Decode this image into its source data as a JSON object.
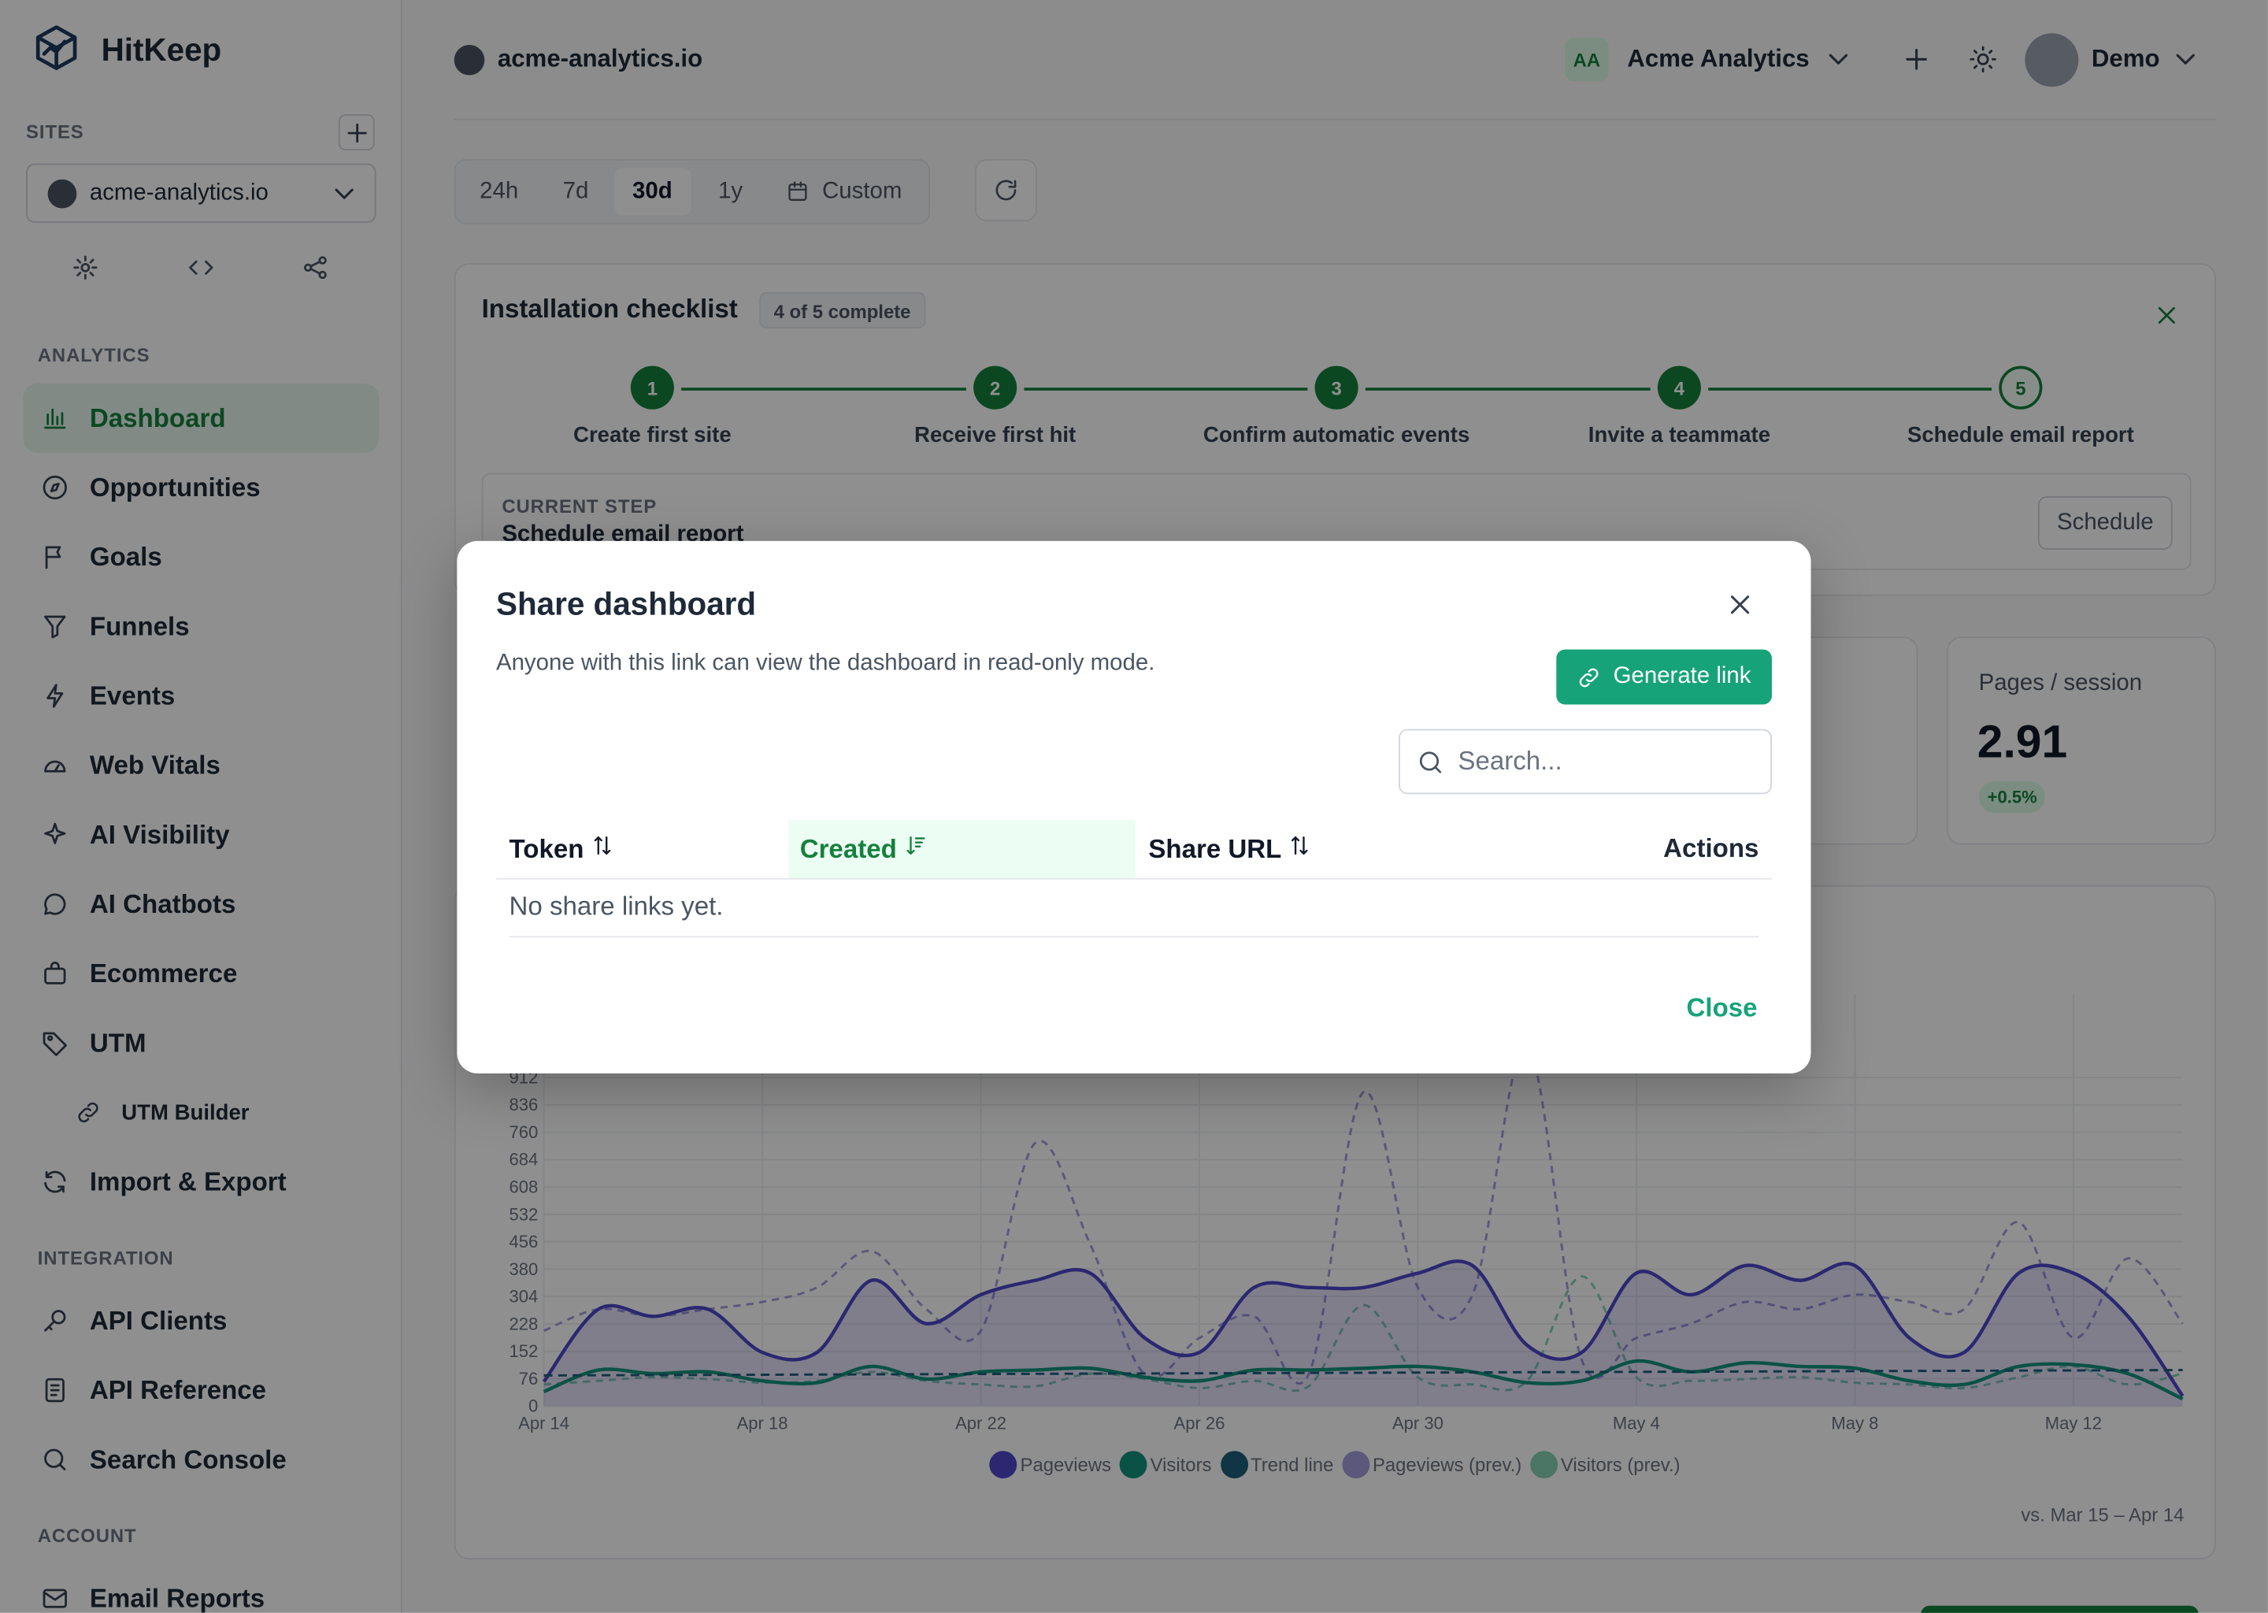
{
  "sidebar": {
    "brand": "HitKeep",
    "sites_label": "SITES",
    "site": "acme-analytics.io",
    "sections": [
      {
        "label": "ANALYTICS",
        "items": [
          "Dashboard",
          "Opportunities",
          "Goals",
          "Funnels",
          "Events",
          "Web Vitals",
          "AI Visibility",
          "AI Chatbots",
          "Ecommerce",
          "UTM",
          "UTM Builder",
          "Import & Export"
        ]
      },
      {
        "label": "INTEGRATION",
        "items": [
          "API Clients",
          "API Reference",
          "Search Console"
        ]
      },
      {
        "label": "ACCOUNT",
        "items": [
          "Email Reports"
        ]
      }
    ]
  },
  "header": {
    "site": "acme-analytics.io",
    "org_initials": "AA",
    "org": "Acme Analytics",
    "user": "Demo"
  },
  "toolbar": {
    "ranges": [
      "24h",
      "7d",
      "30d",
      "1y",
      "Custom"
    ]
  },
  "checklist": {
    "title": "Installation checklist",
    "badge": "4 of 5 complete",
    "steps": [
      {
        "number": 1,
        "label": "Create first site"
      },
      {
        "number": 2,
        "label": "Receive first hit"
      },
      {
        "number": 3,
        "label": "Confirm automatic events"
      },
      {
        "number": 4,
        "label": "Invite a teammate"
      },
      {
        "number": 5,
        "label": "Schedule email report"
      }
    ],
    "current_label": "CURRENT STEP",
    "current_step": "Schedule email report",
    "action": "Schedule"
  },
  "stats": [
    {
      "label": "Pages / session",
      "value": "2.91",
      "change": "+0.5%"
    }
  ],
  "chart_data": {
    "type": "line",
    "categories": [
      "Apr 14",
      null,
      null,
      null,
      "Apr 18",
      null,
      null,
      null,
      "Apr 22",
      null,
      null,
      null,
      "Apr 26",
      null,
      null,
      null,
      "Apr 30",
      null,
      null,
      null,
      "May 4",
      null,
      null,
      null,
      "May 8",
      null,
      null,
      null,
      "May 12",
      null,
      null
    ],
    "series": [
      {
        "name": "Pageviews",
        "color": "#4f46c8",
        "fill": true,
        "dash": false,
        "values": [
          68,
          269,
          249,
          269,
          149,
          149,
          349,
          229,
          309,
          349,
          369,
          189,
          149,
          329,
          329,
          329,
          369,
          390,
          169,
          149,
          369,
          309,
          390,
          349,
          390,
          189,
          149,
          369,
          369,
          249,
          28
        ]
      },
      {
        "name": "Visitors",
        "color": "#12927b",
        "fill": false,
        "dash": false,
        "values": [
          40,
          100,
          90,
          95,
          70,
          65,
          110,
          75,
          95,
          100,
          105,
          80,
          70,
          100,
          100,
          105,
          110,
          95,
          65,
          70,
          125,
          95,
          120,
          110,
          105,
          70,
          60,
          110,
          115,
          90,
          20
        ]
      },
      {
        "name": "Trend line",
        "color": "#1d5f7a",
        "fill": false,
        "dash": true,
        "values": [
          85,
          85.5,
          86,
          86.5,
          87,
          87.5,
          88,
          88.5,
          89,
          89.5,
          90,
          90.5,
          91,
          91.5,
          92,
          92.5,
          93,
          93.5,
          94,
          94.5,
          95,
          95.5,
          96,
          96.5,
          97,
          97.5,
          98,
          98.5,
          99,
          99.5,
          100
        ]
      },
      {
        "name": "Pageviews (prev.)",
        "color": "#a29ddc",
        "fill": false,
        "dash": true,
        "values": [
          209,
          269,
          249,
          269,
          289,
          329,
          430,
          269,
          209,
          731,
          450,
          88,
          189,
          249,
          88,
          871,
          329,
          309,
          1000,
          128,
          189,
          229,
          289,
          269,
          309,
          289,
          269,
          510,
          189,
          410,
          229
        ]
      },
      {
        "name": "Visitors (prev.)",
        "color": "#86d1b4",
        "fill": false,
        "dash": true,
        "values": [
          60,
          70,
          80,
          75,
          65,
          70,
          95,
          70,
          60,
          55,
          90,
          75,
          50,
          70,
          55,
          280,
          80,
          60,
          70,
          360,
          80,
          70,
          75,
          80,
          65,
          60,
          50,
          80,
          110,
          60,
          90
        ]
      }
    ],
    "ylim": [
      0,
      1064
    ],
    "yticks": [
      0,
      76,
      152,
      228,
      304,
      380,
      456,
      532,
      608,
      684,
      760,
      836,
      912
    ],
    "grid": true,
    "legend": "bottom",
    "footnote": "vs. Mar 15 – Apr 14"
  },
  "modal": {
    "title": "Share dashboard",
    "description": "Anyone with this link can view the dashboard in read-only mode.",
    "generate": "Generate link",
    "search_placeholder": "Search...",
    "columns": [
      "Token",
      "Created",
      "Share URL",
      "Actions"
    ],
    "empty": "No share links yet.",
    "close": "Close"
  }
}
